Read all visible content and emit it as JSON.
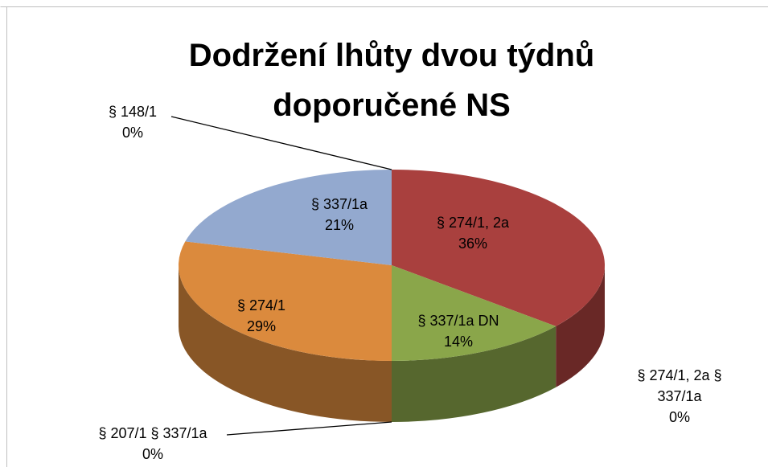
{
  "chart_data": {
    "type": "pie3d",
    "title": "Dodržení lhůty dvou týdnů doporučené NS",
    "categories": [
      "§ 274/1, 2a",
      "§ 274/1, 2a § 337/1a",
      "§ 337/1a DN",
      "§ 207/1 § 337/1a",
      "§ 274/1",
      "§ 337/1a",
      "§ 148/1"
    ],
    "values": [
      36,
      0,
      14,
      0,
      29,
      21,
      0
    ],
    "value_labels": [
      "36%",
      "0%",
      "14%",
      "0%",
      "29%",
      "21%",
      "0%"
    ],
    "colors": [
      "#a9403e",
      "#6a3a6a",
      "#8aa64a",
      "#4a9cb0",
      "#db8a3d",
      "#93a9cf",
      "#7a7a7a"
    ]
  }
}
